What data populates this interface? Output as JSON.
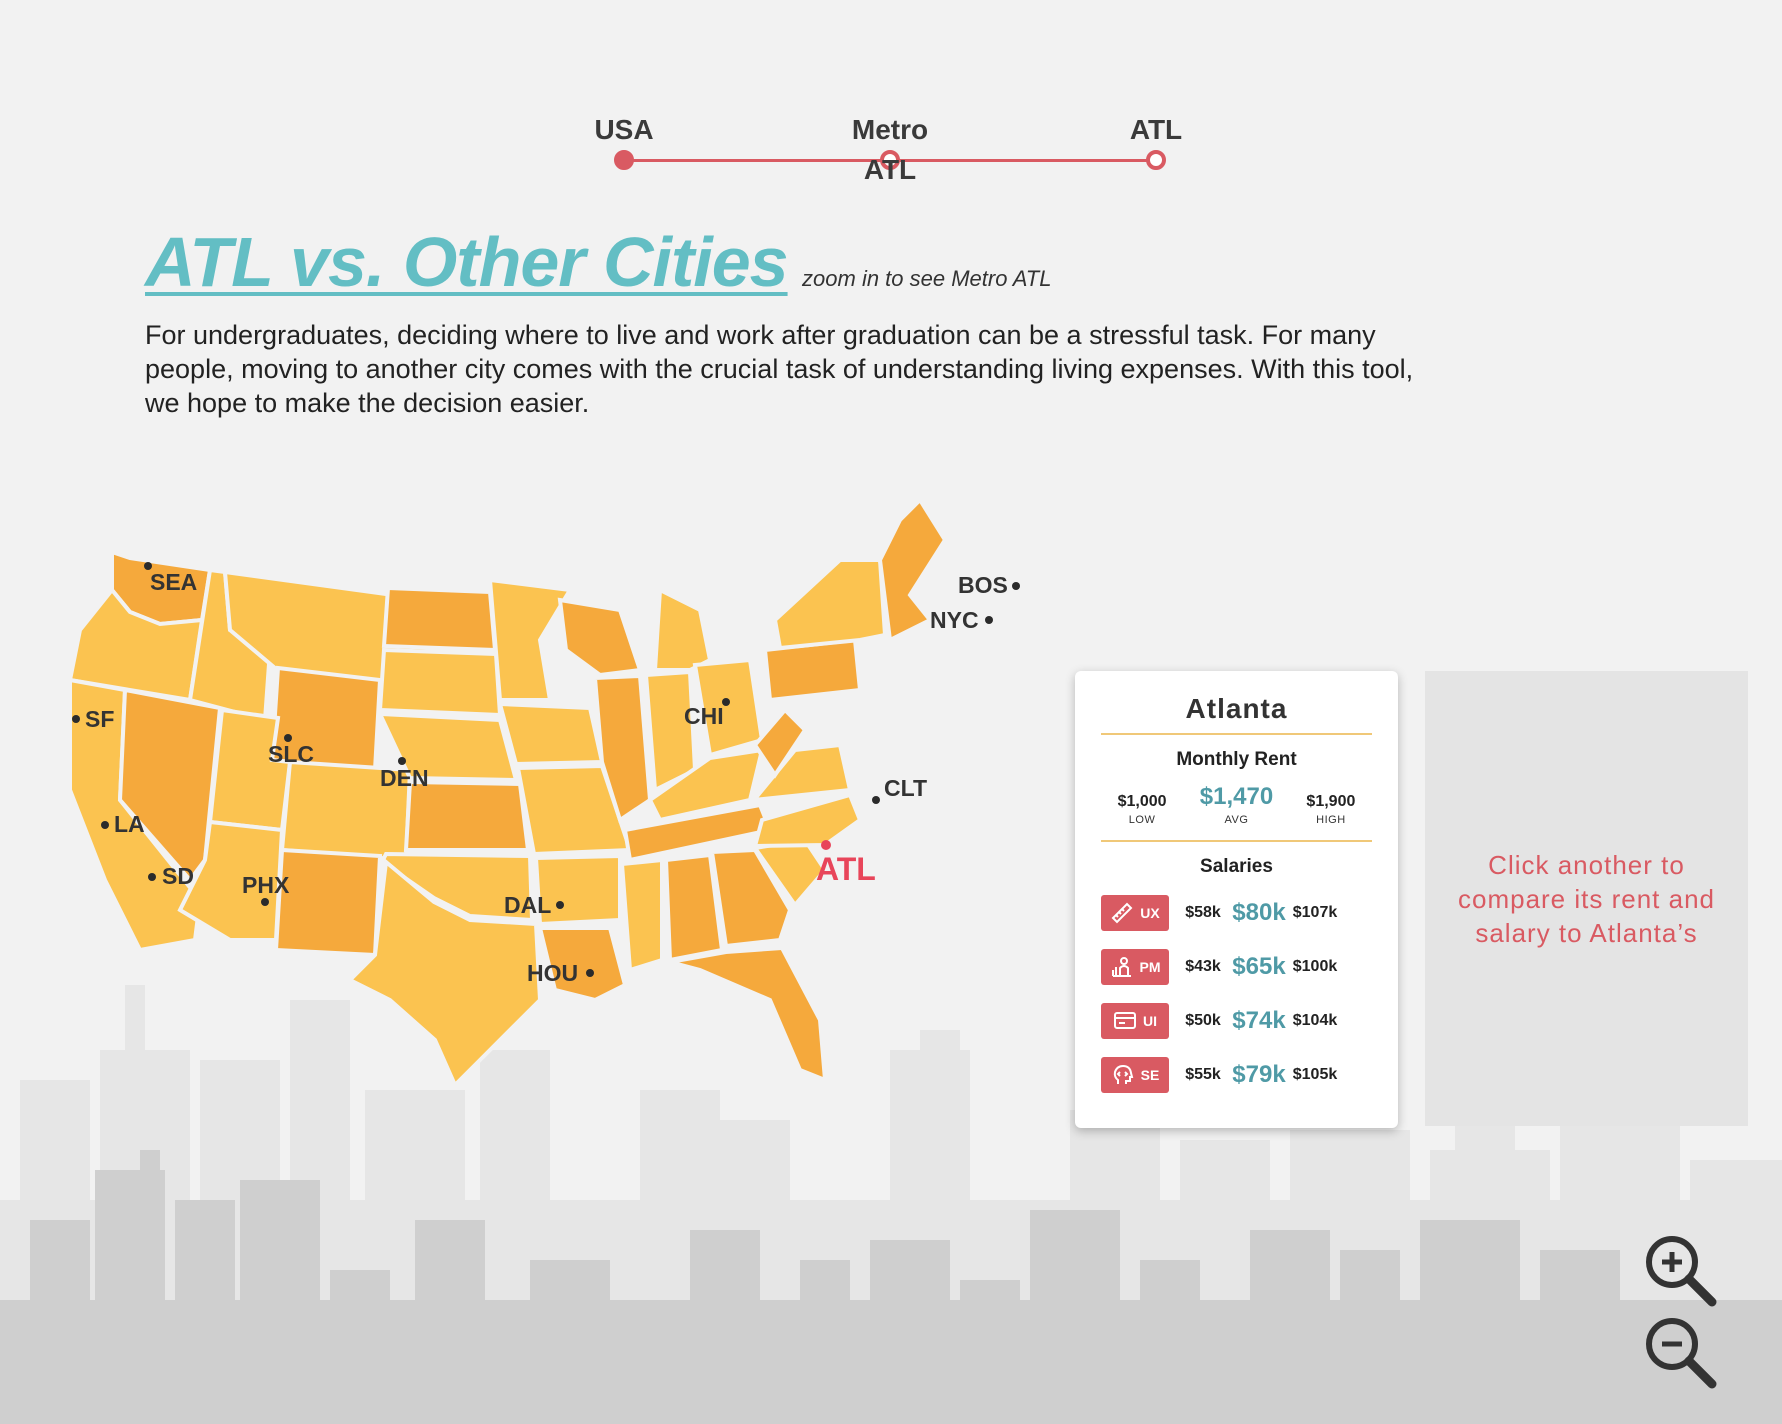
{
  "breadcrumb": {
    "stops": [
      {
        "label": "USA",
        "active": true
      },
      {
        "label": "Metro ATL",
        "active": false
      },
      {
        "label": "ATL",
        "active": false
      }
    ]
  },
  "header": {
    "title": "ATL vs. Other Cities",
    "subtitle": "zoom in to see Metro ATL",
    "intro": "For undergraduates, deciding where to live and work after graduation can be a stressful task. For many people, moving to another city comes with the crucial task of understanding living expenses. With this tool, we hope to make the decision easier."
  },
  "map": {
    "cities": [
      "SEA",
      "SF",
      "LA",
      "SD",
      "SLC",
      "PHX",
      "DEN",
      "DAL",
      "HOU",
      "CHI",
      "BOS",
      "NYC",
      "CLT",
      "ATL"
    ],
    "selected_city": "ATL",
    "colors": {
      "state_light": "#fbc350",
      "state_dark": "#f5a93c",
      "selected": "#e8455a"
    }
  },
  "card": {
    "city": "Atlanta",
    "rent_title": "Monthly Rent",
    "rent": {
      "low": "$1,000",
      "avg": "$1,470",
      "high": "$1,900",
      "low_cap": "LOW",
      "avg_cap": "AVG",
      "high_cap": "HIGH"
    },
    "salaries_title": "Salaries",
    "salaries": [
      {
        "role": "UX",
        "icon": "ruler-pencil-icon",
        "low": "$58k",
        "avg": "$80k",
        "high": "$107k"
      },
      {
        "role": "PM",
        "icon": "chart-person-icon",
        "low": "$43k",
        "avg": "$65k",
        "high": "$100k"
      },
      {
        "role": "UI",
        "icon": "screen-icon",
        "low": "$50k",
        "avg": "$74k",
        "high": "$104k"
      },
      {
        "role": "SE",
        "icon": "code-head-icon",
        "low": "$55k",
        "avg": "$79k",
        "high": "$105k"
      }
    ]
  },
  "compare": {
    "text": "Click another to compare its rent and salary to Atlanta’s"
  },
  "zoom": {
    "in_icon": "zoom-in-icon",
    "out_icon": "zoom-out-icon"
  },
  "colors": {
    "accent_red": "#d95a62",
    "teal": "#63bec4",
    "background": "#f2f2f2"
  }
}
